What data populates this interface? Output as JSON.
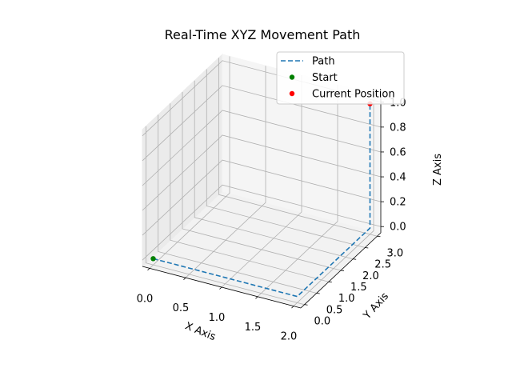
{
  "chart_data": {
    "type": "line3d",
    "title": "Real-Time XYZ Movement Path",
    "xlabel": "X Axis",
    "ylabel": "Y Axis",
    "zlabel": "Z Axis",
    "xlim": [
      -0.1,
      2.1
    ],
    "ylim": [
      -0.15,
      3.15
    ],
    "zlim": [
      -0.05,
      1.05
    ],
    "xticks": [
      "0.0",
      "0.5",
      "1.0",
      "1.5",
      "2.0"
    ],
    "yticks": [
      "0.0",
      "0.5",
      "1.0",
      "1.5",
      "2.0",
      "2.5",
      "3.0"
    ],
    "zticks": [
      "0.0",
      "0.2",
      "0.4",
      "0.6",
      "0.8",
      "1.0"
    ],
    "grid": true,
    "legend_position": "upper right",
    "series": [
      {
        "name": "Path",
        "kind": "line",
        "style": "dashed",
        "color": "#1f77b4",
        "x": [
          0,
          2,
          2,
          2
        ],
        "y": [
          0,
          0,
          3,
          3
        ],
        "z": [
          0,
          0,
          0,
          1
        ]
      },
      {
        "name": "Start",
        "kind": "scatter",
        "color": "#008000",
        "x": [
          0
        ],
        "y": [
          0
        ],
        "z": [
          0
        ]
      },
      {
        "name": "Current Position",
        "kind": "scatter",
        "color": "#ff0000",
        "x": [
          2
        ],
        "y": [
          3
        ],
        "z": [
          1
        ]
      }
    ]
  }
}
